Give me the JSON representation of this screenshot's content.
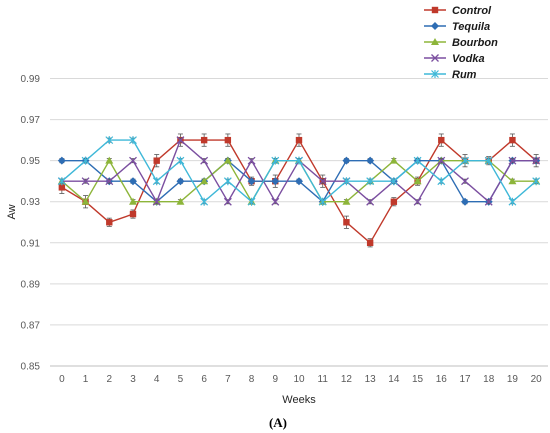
{
  "chart_data": {
    "type": "line",
    "xlabel": "Weeks",
    "ylabel": "Aw",
    "caption": "(A)",
    "x": [
      0,
      1,
      2,
      3,
      4,
      5,
      6,
      7,
      8,
      9,
      10,
      11,
      12,
      13,
      14,
      15,
      16,
      17,
      18,
      19,
      20
    ],
    "ylim": [
      0.85,
      1.0
    ],
    "yticks": [
      "0.85",
      "0.87",
      "0.89",
      "0.91",
      "0.93",
      "0.95",
      "0.97",
      "0.99"
    ],
    "ytick_values": [
      0.85,
      0.87,
      0.89,
      0.91,
      0.93,
      0.95,
      0.97,
      0.99
    ],
    "grid": "horizontal",
    "legend_position": "top-right",
    "series": [
      {
        "name": "Control",
        "color": "#C0392B",
        "marker": "square",
        "values": [
          0.937,
          0.93,
          0.92,
          0.924,
          0.95,
          0.96,
          0.96,
          0.96,
          0.94,
          0.94,
          0.96,
          0.94,
          0.92,
          0.91,
          0.93,
          0.94,
          0.96,
          0.95,
          0.95,
          0.96,
          0.95
        ],
        "errors": [
          0.003,
          0.003,
          0.002,
          0.002,
          0.003,
          0.003,
          0.003,
          0.003,
          0.002,
          0.003,
          0.003,
          0.003,
          0.003,
          0.002,
          0.002,
          0.002,
          0.003,
          0.003,
          0.002,
          0.003,
          0.003
        ]
      },
      {
        "name": "Tequila",
        "color": "#2E6DB4",
        "marker": "diamond",
        "values": [
          0.95,
          0.95,
          0.94,
          0.94,
          0.93,
          0.94,
          0.94,
          0.95,
          0.94,
          0.94,
          0.94,
          0.93,
          0.95,
          0.95,
          0.94,
          0.95,
          0.95,
          0.93,
          0.93,
          0.95,
          0.95
        ],
        "errors": [
          0.001,
          0.001,
          0.001,
          0.001,
          0.001,
          0.001,
          0.001,
          0.001,
          0.001,
          0.001,
          0.001,
          0.001,
          0.001,
          0.001,
          0.001,
          0.001,
          0.001,
          0.001,
          0.001,
          0.001,
          0.001
        ]
      },
      {
        "name": "Bourbon",
        "color": "#8DB53A",
        "marker": "triangle",
        "values": [
          0.94,
          0.93,
          0.95,
          0.93,
          0.93,
          0.93,
          0.94,
          0.95,
          0.93,
          0.95,
          0.95,
          0.93,
          0.93,
          0.94,
          0.95,
          0.94,
          0.95,
          0.95,
          0.95,
          0.94,
          0.94
        ],
        "errors": [
          0.001,
          0.001,
          0.001,
          0.001,
          0.001,
          0.001,
          0.001,
          0.001,
          0.001,
          0.001,
          0.001,
          0.001,
          0.001,
          0.001,
          0.001,
          0.001,
          0.001,
          0.001,
          0.001,
          0.001,
          0.001
        ]
      },
      {
        "name": "Vodka",
        "color": "#7B4FA0",
        "marker": "x",
        "values": [
          0.94,
          0.94,
          0.94,
          0.95,
          0.93,
          0.96,
          0.95,
          0.93,
          0.95,
          0.93,
          0.95,
          0.94,
          0.94,
          0.93,
          0.94,
          0.93,
          0.95,
          0.94,
          0.93,
          0.95,
          0.95
        ],
        "errors": [
          0.001,
          0.001,
          0.001,
          0.001,
          0.001,
          0.001,
          0.001,
          0.001,
          0.001,
          0.001,
          0.001,
          0.001,
          0.001,
          0.001,
          0.001,
          0.001,
          0.001,
          0.001,
          0.001,
          0.001,
          0.001
        ]
      },
      {
        "name": "Rum",
        "color": "#3FB8D8",
        "marker": "star",
        "values": [
          0.94,
          0.95,
          0.96,
          0.96,
          0.94,
          0.95,
          0.93,
          0.94,
          0.93,
          0.95,
          0.95,
          0.93,
          0.94,
          0.94,
          0.94,
          0.95,
          0.94,
          0.95,
          0.95,
          0.93,
          0.94
        ],
        "errors": [
          0.001,
          0.001,
          0.001,
          0.001,
          0.001,
          0.001,
          0.001,
          0.001,
          0.001,
          0.001,
          0.001,
          0.001,
          0.001,
          0.001,
          0.001,
          0.001,
          0.001,
          0.001,
          0.001,
          0.001,
          0.001
        ]
      }
    ]
  }
}
